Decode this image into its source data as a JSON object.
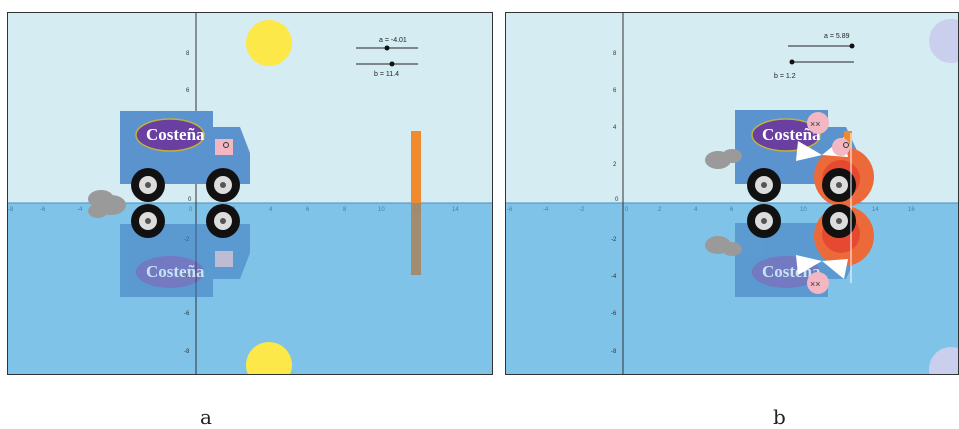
{
  "panels": [
    {
      "id": "a",
      "caption": "a",
      "sliders": [
        {
          "label": "a = -4.01",
          "value": -4.01
        },
        {
          "label": "b = 11.4",
          "value": 11.4
        }
      ],
      "x_ticks": [
        "-8",
        "-6",
        "-4",
        "-2",
        "0",
        "2",
        "4",
        "6",
        "8",
        "10",
        "12",
        "14"
      ],
      "y_ticks": [
        "8",
        "6",
        "4",
        "2",
        "0",
        "-2",
        "-4",
        "-6",
        "-8"
      ],
      "truck_brand": "Costeña",
      "reflection_brand": "Costeña"
    },
    {
      "id": "b",
      "caption": "b",
      "sliders": [
        {
          "label": "a = 5.89",
          "value": 5.89
        },
        {
          "label": "b = 1.2",
          "value": 1.2
        }
      ],
      "x_ticks": [
        "-6",
        "-4",
        "-2",
        "0",
        "2",
        "4",
        "6",
        "8",
        "10",
        "12",
        "14",
        "16"
      ],
      "y_ticks": [
        "8",
        "6",
        "4",
        "2",
        "0",
        "-2",
        "-4",
        "-6",
        "-8"
      ],
      "truck_brand": "Costeña",
      "reflection_brand": "Costeña",
      "eyes_label": "××"
    }
  ],
  "colors": {
    "sky": "#d4ecf2",
    "water": "#7fc3e8",
    "truck": "#5b93cf",
    "sun": "#fde84a",
    "moon": "#c9cfec",
    "bar": "#f08a2e",
    "fire": "#ec6a39",
    "smoke": "#9a9a9a"
  }
}
